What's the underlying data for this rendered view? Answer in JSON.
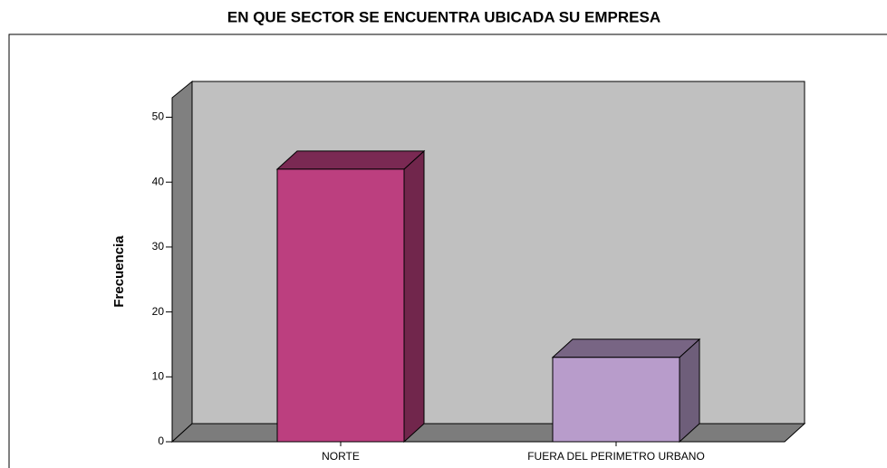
{
  "chart_data": {
    "type": "bar3d",
    "title": "EN QUE SECTOR SE ENCUENTRA UBICADA SU EMPRESA",
    "y_label": "Frecuencia",
    "categories": [
      "NORTE",
      "FUERA DEL PERIMETRO URBANO"
    ],
    "values": [
      42,
      13
    ],
    "colors": [
      "#bc3f7f",
      "#b89ccb"
    ],
    "ylim": [
      0,
      53
    ],
    "yticks": [
      0,
      10,
      20,
      30,
      40,
      50
    ]
  }
}
